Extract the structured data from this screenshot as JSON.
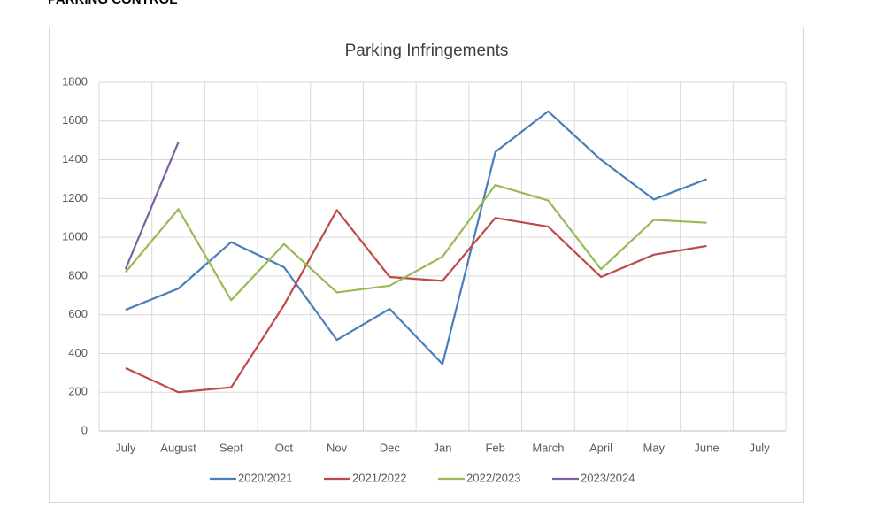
{
  "heading": "PARKING CONTROL",
  "chart_data": {
    "type": "line",
    "title": "Parking Infringements",
    "categories": [
      "July",
      "August",
      "Sept",
      "Oct",
      "Nov",
      "Dec",
      "Jan",
      "Feb",
      "March",
      "April",
      "May",
      "June",
      "July"
    ],
    "series": [
      {
        "name": "2020/2021",
        "color": "#4a7ebb",
        "values": [
          625,
          735,
          975,
          845,
          470,
          630,
          345,
          1440,
          1650,
          1400,
          1195,
          1300,
          null
        ]
      },
      {
        "name": "2021/2022",
        "color": "#be4b48",
        "values": [
          325,
          200,
          225,
          650,
          1140,
          795,
          775,
          1100,
          1055,
          795,
          910,
          955,
          null
        ]
      },
      {
        "name": "2022/2023",
        "color": "#98b954",
        "values": [
          820,
          1145,
          675,
          965,
          715,
          750,
          900,
          1270,
          1190,
          835,
          1090,
          1075,
          null
        ]
      },
      {
        "name": "2023/2024",
        "color": "#7d60a0",
        "values": [
          835,
          1490,
          null,
          null,
          null,
          null,
          null,
          null,
          null,
          null,
          null,
          null,
          null
        ]
      }
    ],
    "ylim": [
      0,
      1800
    ],
    "yticks": [
      0,
      200,
      400,
      600,
      800,
      1000,
      1200,
      1400,
      1600,
      1800
    ],
    "grid": true,
    "legend": "bottom"
  }
}
